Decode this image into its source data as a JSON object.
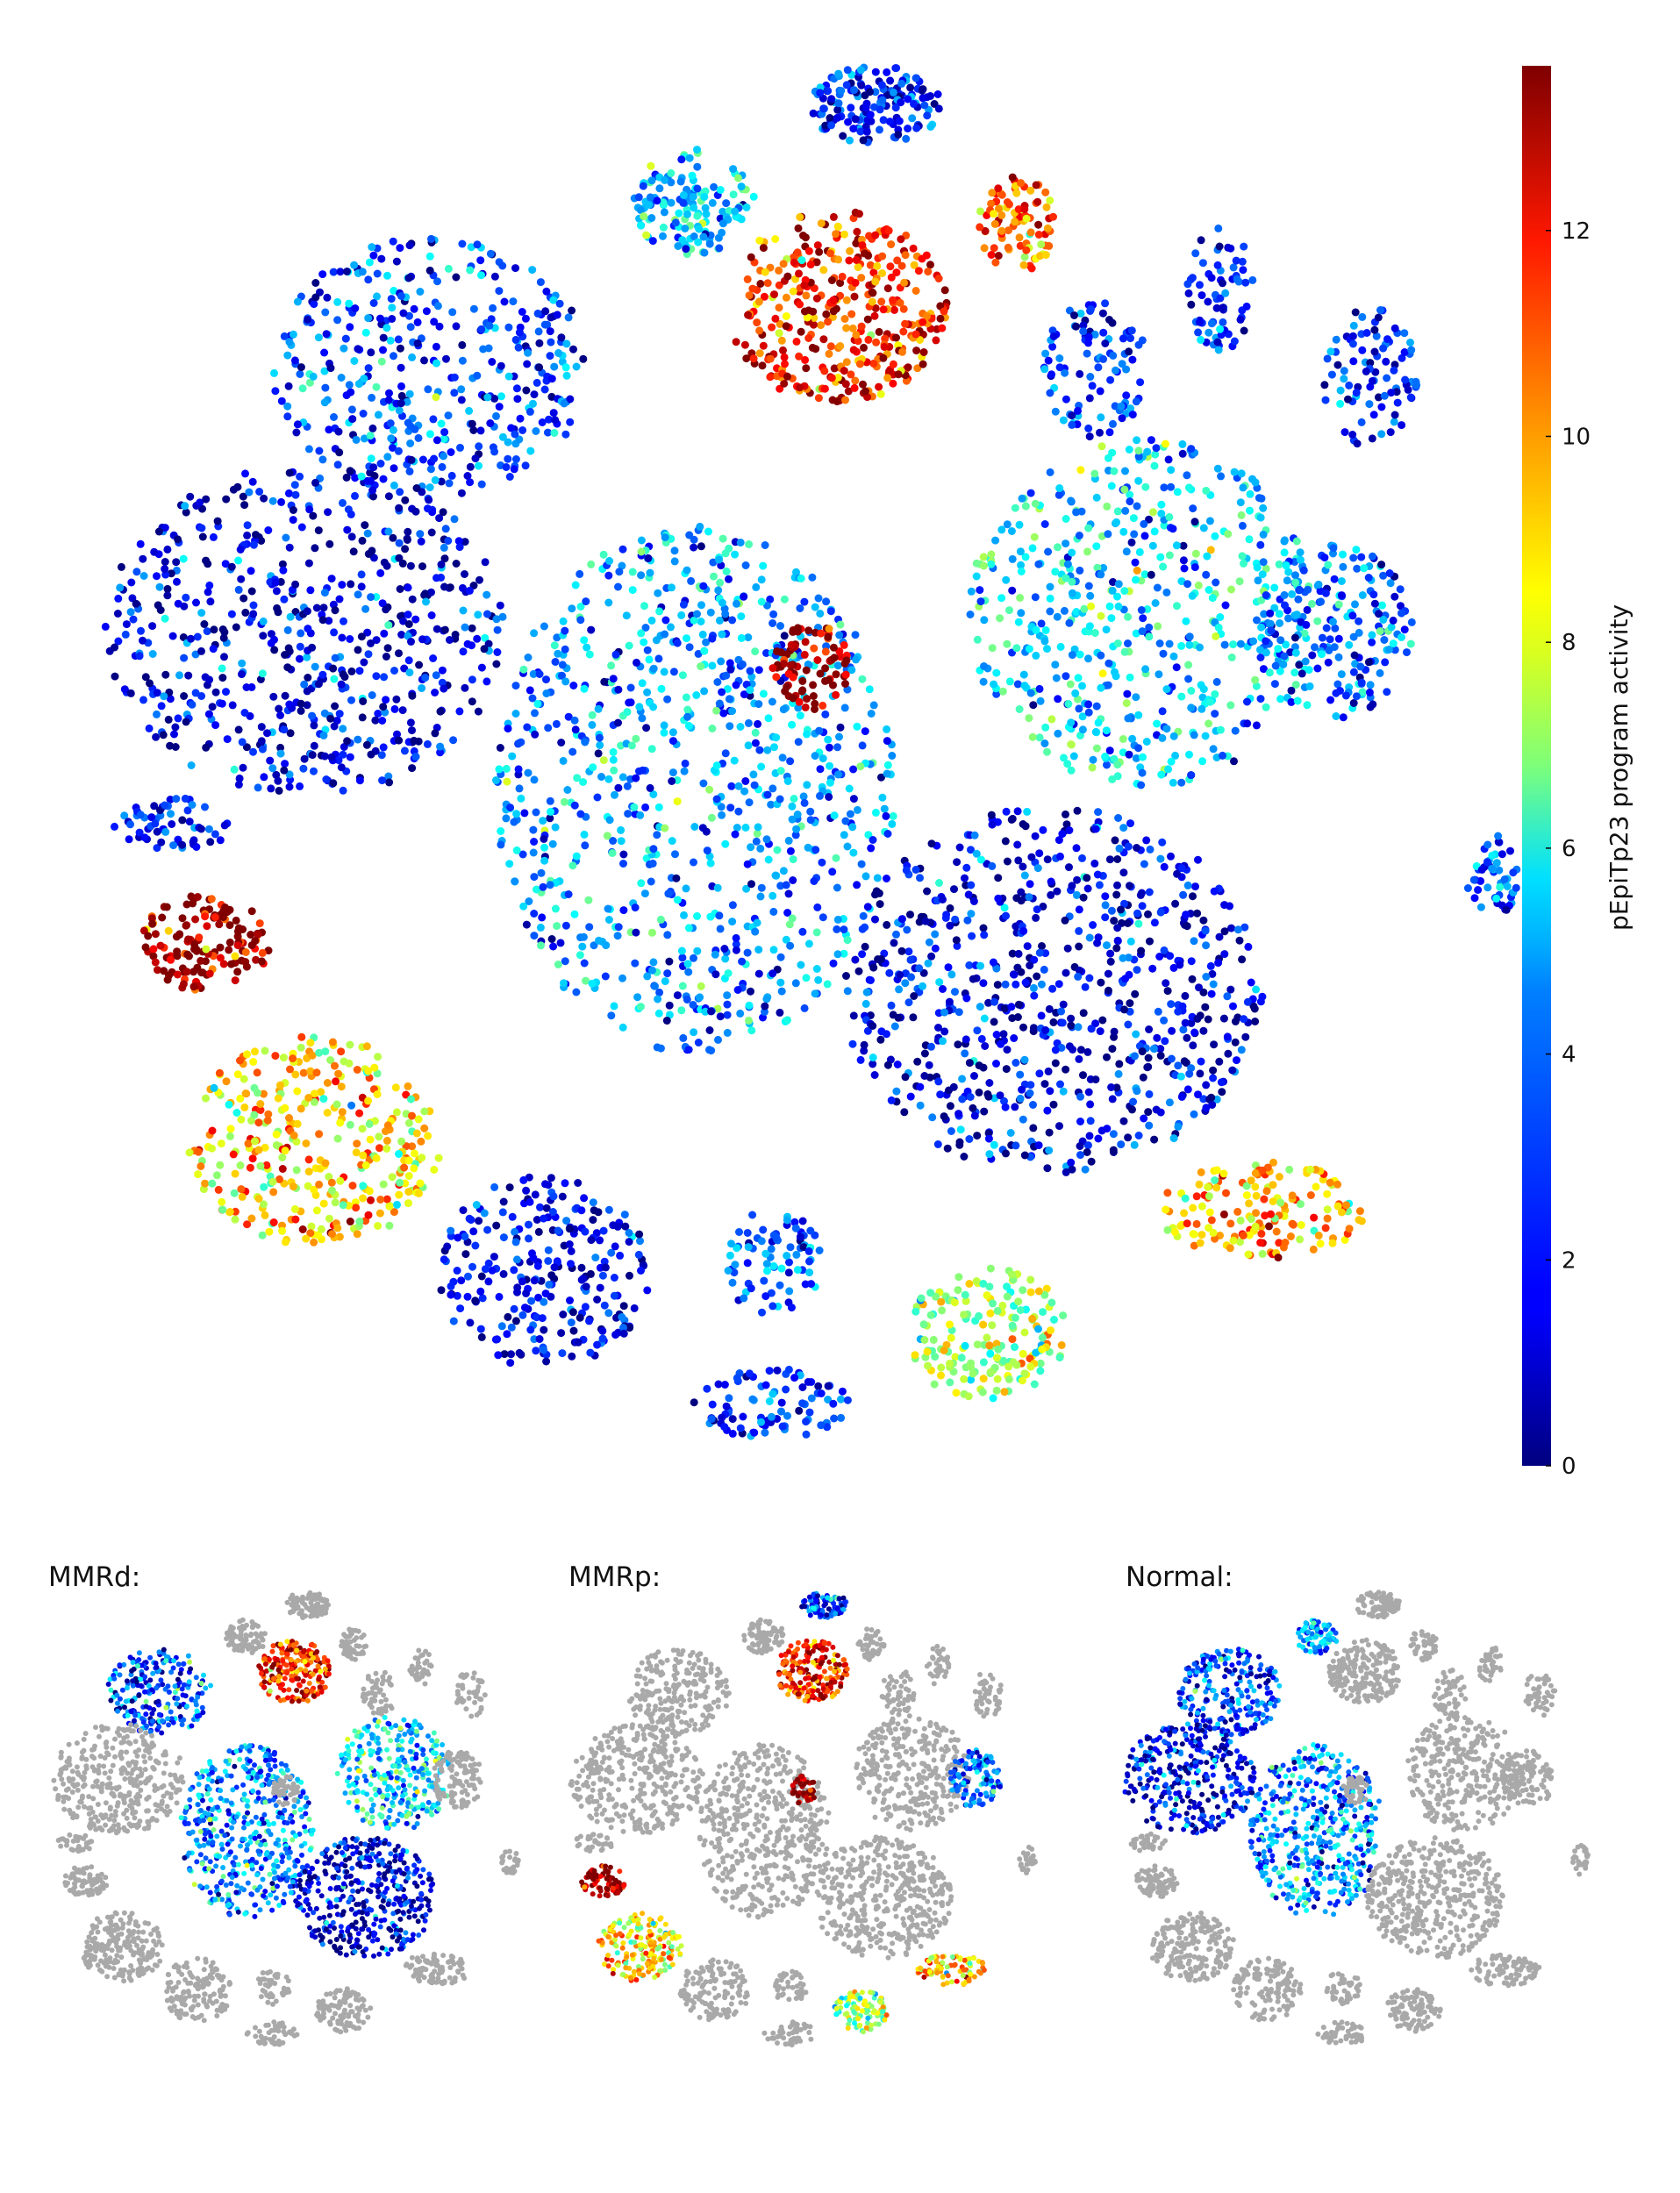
{
  "chart_data": {
    "type": "scatter",
    "description_kind": "tsne-embedding",
    "colorbar": {
      "label": "pEpiTp23 program activity",
      "range": [
        0,
        13.6
      ],
      "ticks": [
        0,
        2,
        4,
        6,
        8,
        10,
        12
      ],
      "colormap": "jet"
    },
    "main_panel": {
      "clusters": [
        {
          "id": "top-small-1",
          "activity": 2.0
        },
        {
          "id": "top-left-small",
          "activity": 4.2
        },
        {
          "id": "top-orange-blob",
          "activity": 11.6
        },
        {
          "id": "top-right-orange",
          "activity": 10.5
        },
        {
          "id": "upper-left-large",
          "activity": 2.5
        },
        {
          "id": "left-large",
          "activity": 1.4
        },
        {
          "id": "center-large",
          "activity": 3.6
        },
        {
          "id": "dark-red-diamond",
          "activity": 13.4
        },
        {
          "id": "left-red-blob",
          "activity": 13.4
        },
        {
          "id": "lower-left-yellow",
          "activity": 8.8
        },
        {
          "id": "lower-right-dark",
          "activity": 1.3
        },
        {
          "id": "right-mixed",
          "activity": 4.5
        },
        {
          "id": "right-red-streak",
          "activity": 9.5
        },
        {
          "id": "bottom-yellow",
          "activity": 7.2
        },
        {
          "id": "far-right-small",
          "activity": 3.0
        }
      ]
    },
    "sub_panels": [
      {
        "label": "MMRd:",
        "highlight": "mixed",
        "other_color": "#a9a9a9"
      },
      {
        "label": "MMRp:",
        "highlight": "mixed",
        "other_color": "#a9a9a9"
      },
      {
        "label": "Normal:",
        "highlight": "mixed",
        "other_color": "#a9a9a9"
      }
    ]
  }
}
